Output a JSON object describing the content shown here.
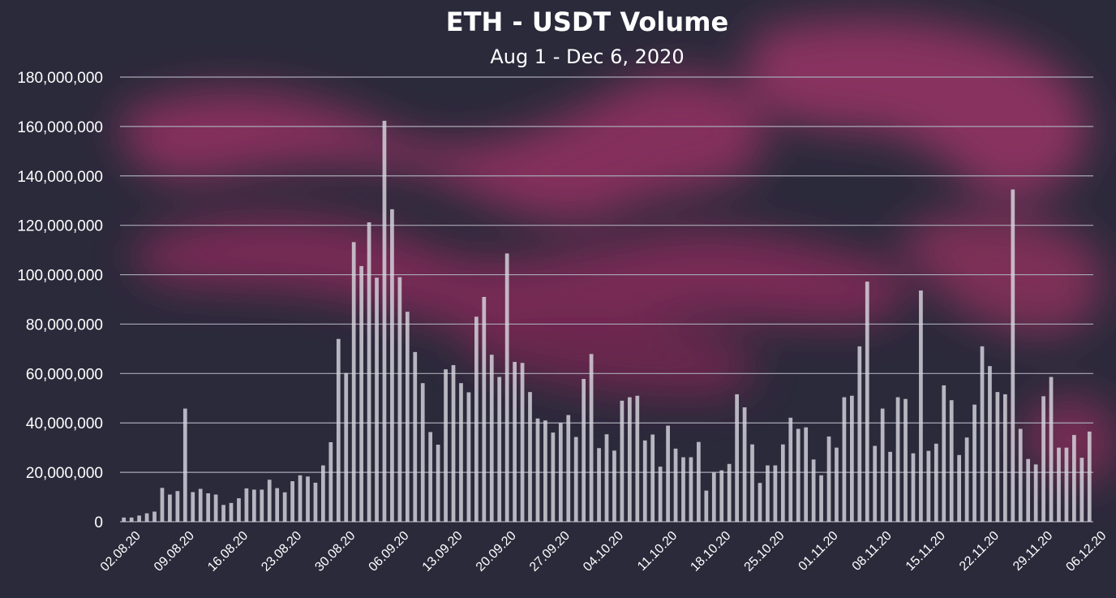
{
  "colors": {
    "background": "#2b2a3b",
    "smoke_accent": "#a7356c",
    "bar": "#d7d6de",
    "grid": "#a9a8b6",
    "text": "#ffffff"
  },
  "chart_data": {
    "type": "bar",
    "title": "ETH - USDT Volume",
    "subtitle": "Aug 1 - Dec 6, 2020",
    "xlabel": "",
    "ylabel": "",
    "ylim": [
      0,
      180000000
    ],
    "grid": true,
    "yticks": [
      "0",
      "20,000,000",
      "40,000,000",
      "60,000,000",
      "80,000,000",
      "100,000,000",
      "120,000,000",
      "140,000,000",
      "160,000,000",
      "180,000,000"
    ],
    "xticks": [
      "02.08.20",
      "09.08.20",
      "16.08.20",
      "23.08.20",
      "30.08.20",
      "06.09.20",
      "13.09.20",
      "20.09.20",
      "27.09.20",
      "04.10.20",
      "11.10.20",
      "18.10.20",
      "25.10.20",
      "01.11.20",
      "08.11.20",
      "15.11.20",
      "22.11.20",
      "29.11.20",
      "06.12.20"
    ],
    "start_date": "2020-08-01",
    "values": [
      1700000,
      1700000,
      2500000,
      3400000,
      4100000,
      13700000,
      11000000,
      12400000,
      45800000,
      12000000,
      13300000,
      11500000,
      11000000,
      6800000,
      7600000,
      9500000,
      13500000,
      13000000,
      13000000,
      17000000,
      13600000,
      11900000,
      16400000,
      18800000,
      18300000,
      15800000,
      22800000,
      32200000,
      74000000,
      60200000,
      113200000,
      103500000,
      121200000,
      98800000,
      162300000,
      126500000,
      99000000,
      85000000,
      68700000,
      56100000,
      36300000,
      31200000,
      61700000,
      63400000,
      56100000,
      52400000,
      83000000,
      91000000,
      67600000,
      58600000,
      108600000,
      64700000,
      64300000,
      52500000,
      41800000,
      41000000,
      36100000,
      40000000,
      43200000,
      34300000,
      57800000,
      67900000,
      29800000,
      35400000,
      28800000,
      49000000,
      50400000,
      51000000,
      32900000,
      35300000,
      22300000,
      38900000,
      29600000,
      26100000,
      26100000,
      32300000,
      12600000,
      19900000,
      20800000,
      23400000,
      51600000,
      46300000,
      31300000,
      15700000,
      22800000,
      22800000,
      31300000,
      42100000,
      37600000,
      38200000,
      25200000,
      18800000,
      34500000,
      30000000,
      50400000,
      51000000,
      71000000,
      97200000,
      30700000,
      45800000,
      28300000,
      50400000,
      49700000,
      27700000,
      93600000,
      28700000,
      31600000,
      55200000,
      49200000,
      27000000,
      34100000,
      47400000,
      71000000,
      63000000,
      52500000,
      51600000,
      134500000,
      37600000,
      25400000,
      23200000,
      50800000,
      58600000,
      30000000,
      30000000,
      35100000,
      25900000,
      36500000
    ]
  }
}
